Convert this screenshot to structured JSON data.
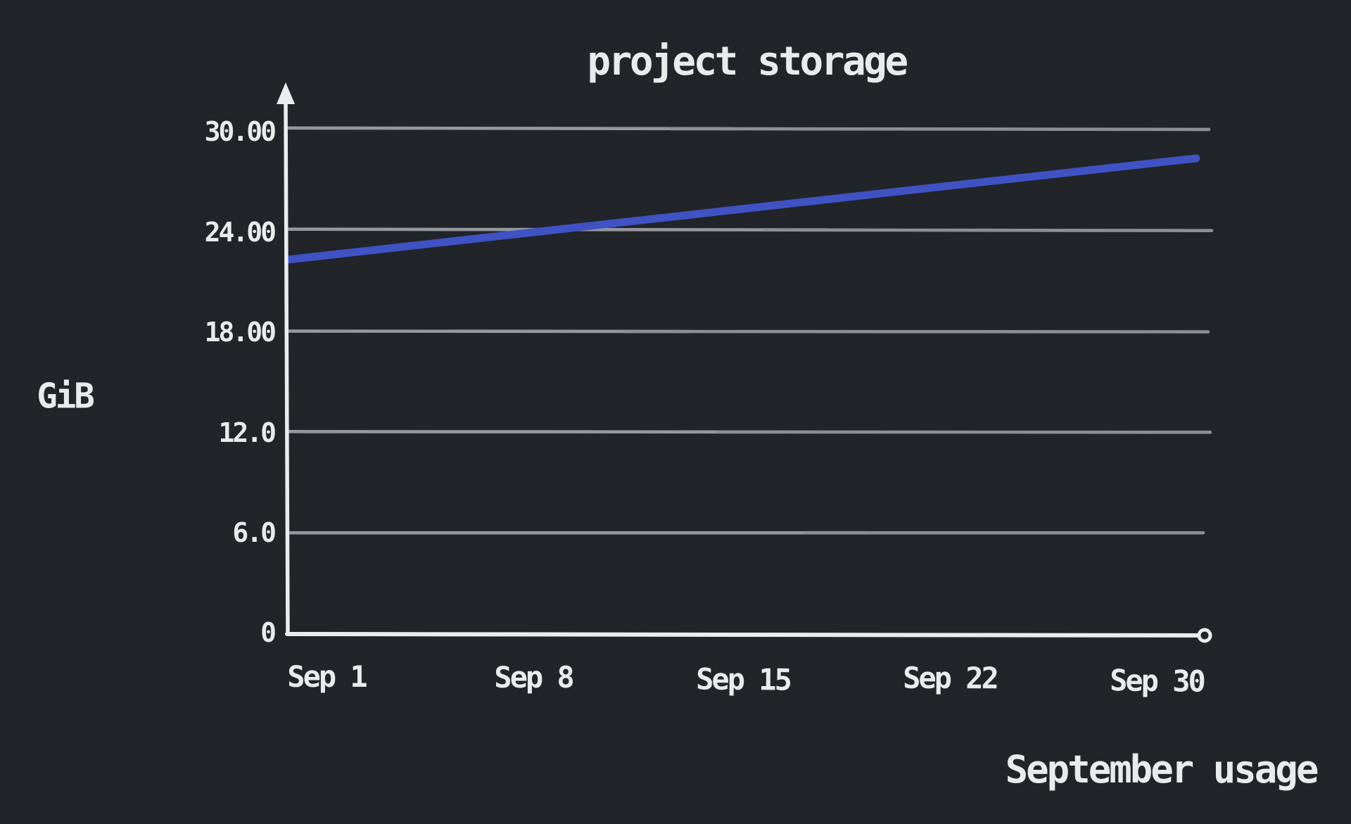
{
  "page": {
    "background_color": "#212429",
    "text_color": "#e9eaec",
    "axis_color": "#ebeced",
    "gridline_color": "#8b8f96",
    "accent_line_color": "#4152c4"
  },
  "chart_data": {
    "type": "line",
    "title": "project storage",
    "ylabel": "GiB",
    "xlabel": "September usage",
    "x_tick_labels": [
      "Sep 1",
      "Sep 8",
      "Sep 15",
      "Sep 22",
      "Sep 30"
    ],
    "y_tick_labels": [
      "30.00",
      "24.00",
      "18.00",
      "12.0",
      "6.0",
      "0"
    ],
    "y_tick_values": [
      30,
      24,
      18,
      12,
      6,
      0
    ],
    "ylim": [
      0,
      31
    ],
    "xlim_days": [
      1,
      30
    ],
    "grid": "horizontal-only",
    "legend": "none",
    "y_axis_arrow": true,
    "x_axis_end_marker": "open-circle",
    "series": [
      {
        "color": "#4152c4",
        "points": [
          {
            "x": "Sep 1",
            "day": 1,
            "gib": 22.2
          },
          {
            "x": "Sep 8",
            "day": 8,
            "gib": 23.65
          },
          {
            "x": "Sep 15",
            "day": 15,
            "gib": 25.1
          },
          {
            "x": "Sep 22",
            "day": 22,
            "gib": 26.55
          },
          {
            "x": "Sep 30",
            "day": 30,
            "gib": 28.2
          }
        ]
      }
    ]
  }
}
